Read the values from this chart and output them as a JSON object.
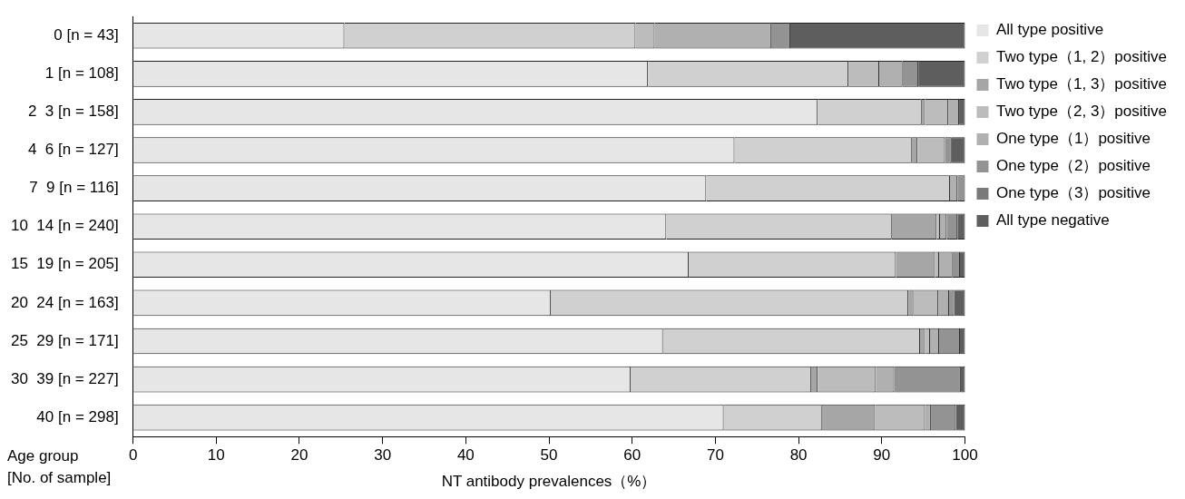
{
  "chart_data": {
    "type": "bar",
    "orientation": "horizontal",
    "stacked": true,
    "xlabel": "NT antibody prevalences（%）",
    "ylabel": "Age group\n[No. of sample]",
    "categories": [
      "0 [n = 43]",
      "1 [n = 108]",
      "2  3 [n = 158]",
      "4  6 [n = 127]",
      "7  9 [n = 116]",
      "10  14 [n = 240]",
      "15  19 [n = 205]",
      "20  24 [n = 163]",
      "25  29 [n = 171]",
      "30  39 [n = 227]",
      "40 [n = 298]"
    ],
    "xlim": [
      0,
      100
    ],
    "xticks": [
      0,
      10,
      20,
      30,
      40,
      50,
      60,
      70,
      80,
      90,
      100
    ],
    "grid": false,
    "legend": "right",
    "series": [
      {
        "name": "All type positive",
        "color": "#e6e6e6",
        "values": [
          25.4,
          61.9,
          82.3,
          72.3,
          68.9,
          64.1,
          66.8,
          50.2,
          63.7,
          59.8,
          71.0
        ]
      },
      {
        "name": "Two type（1, 2）positive",
        "color": "#d0d0d0",
        "values": [
          35.0,
          24.1,
          12.5,
          21.3,
          29.3,
          27.1,
          24.9,
          43.0,
          30.9,
          21.7,
          11.8
        ]
      },
      {
        "name": "Two type（1, 3）positive",
        "color": "#a6a6a6",
        "values": [
          0,
          0,
          0.4,
          0.7,
          0,
          5.4,
          4.7,
          0.6,
          0.6,
          0.8,
          6.4
        ]
      },
      {
        "name": "Two type（2, 3）positive",
        "color": "#bcbcbc",
        "values": [
          2.3,
          3.7,
          2.8,
          3.3,
          0,
          0.4,
          0.5,
          3.0,
          0.6,
          7.0,
          6.0
        ]
      },
      {
        "name": "One type（1）positive",
        "color": "#b0b0b0",
        "values": [
          14.0,
          2.8,
          1.3,
          0,
          0.9,
          0.8,
          1.6,
          1.3,
          1.1,
          2.2,
          0.7
        ]
      },
      {
        "name": "One type（2）positive",
        "color": "#939393",
        "values": [
          2.3,
          1.9,
          0,
          0.8,
          0.9,
          1.3,
          0.9,
          0.6,
          2.5,
          8.0,
          3.0
        ]
      },
      {
        "name": "One type（3）positive",
        "color": "#7a7a7a",
        "values": [
          0,
          0,
          0,
          0,
          0,
          0,
          0,
          0,
          0,
          0,
          0
        ]
      },
      {
        "name": "All type negative",
        "color": "#5e5e5e",
        "values": [
          21.0,
          5.6,
          0.7,
          1.6,
          0,
          0.9,
          0.6,
          1.3,
          0.6,
          0.5,
          1.1
        ]
      }
    ]
  }
}
